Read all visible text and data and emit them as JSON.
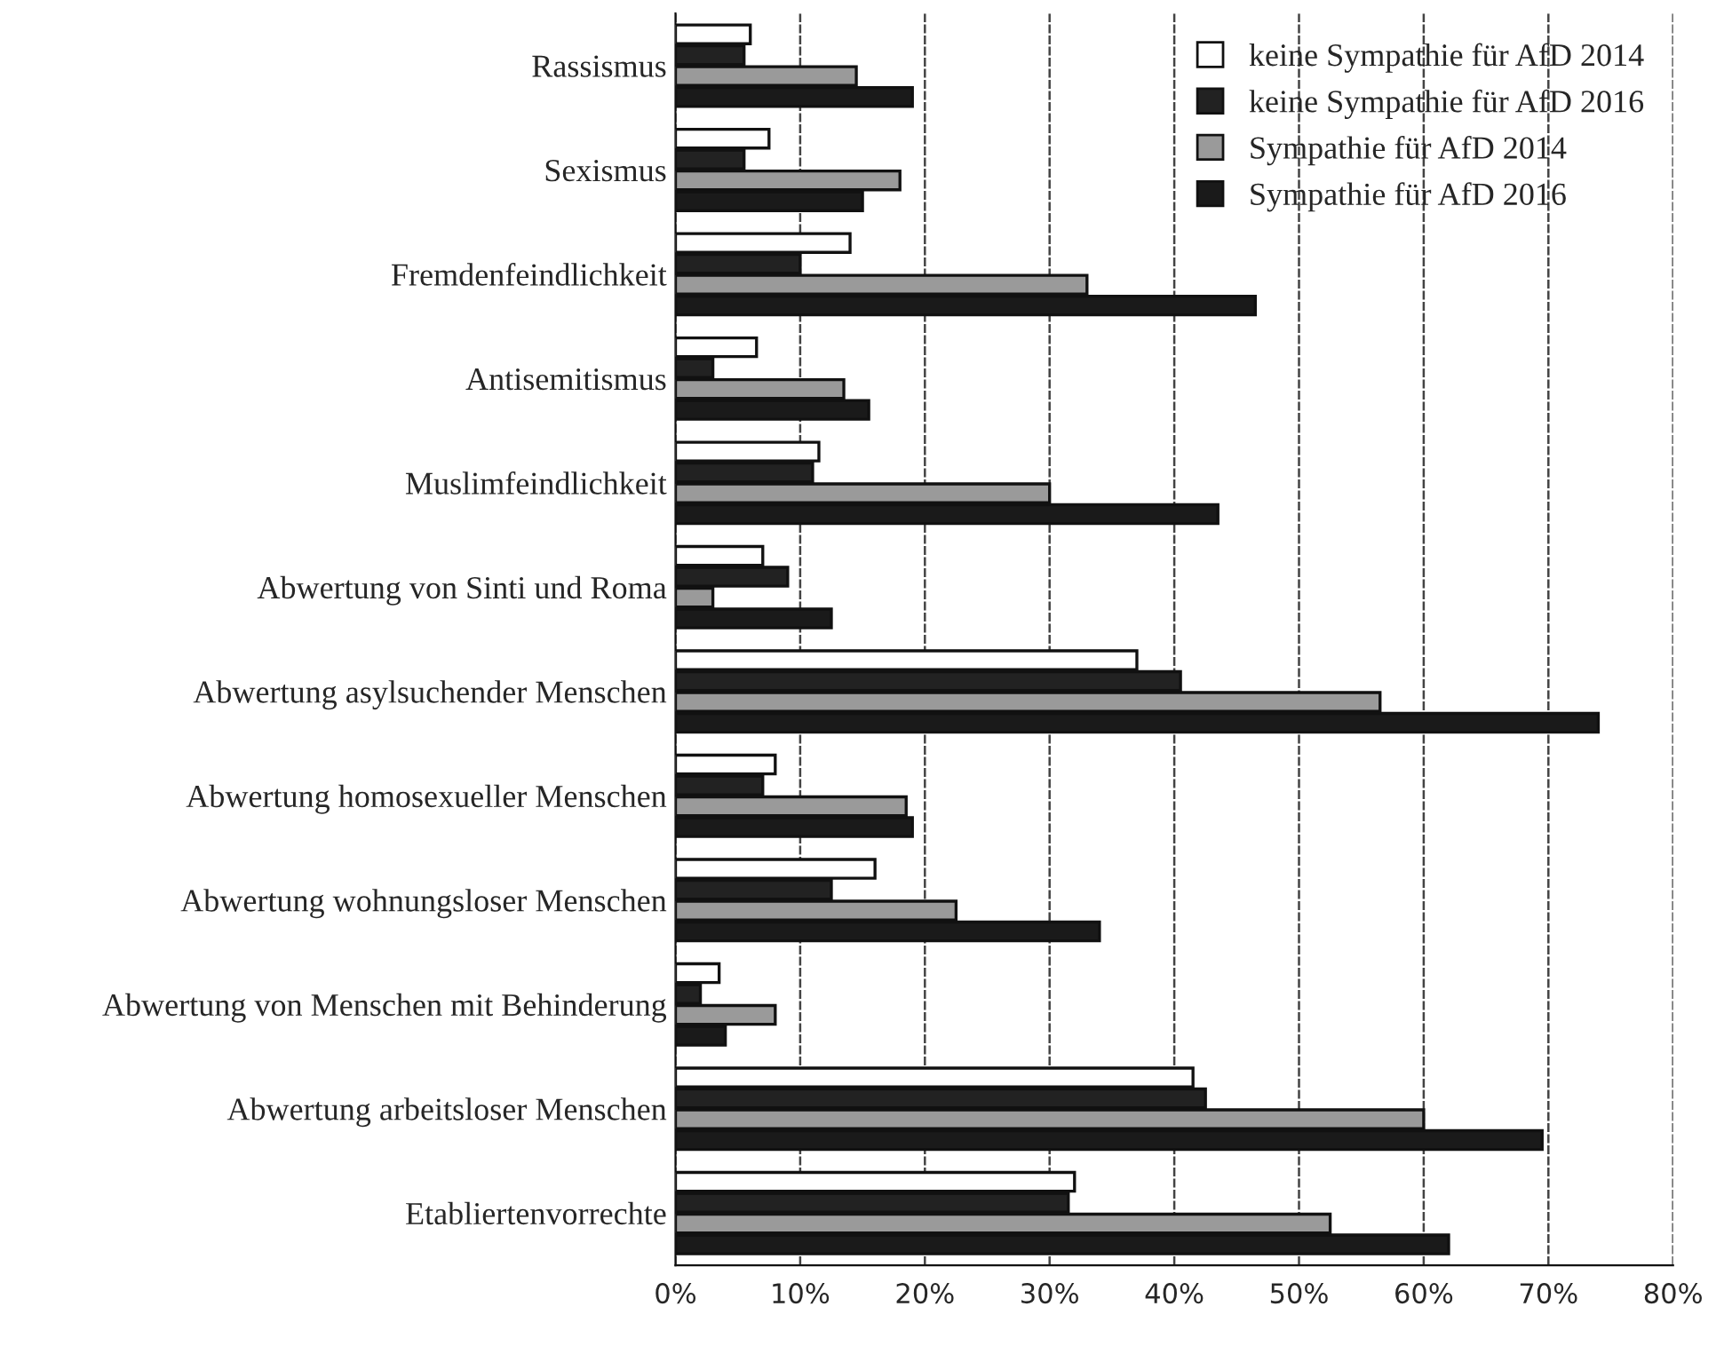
{
  "chart_data": {
    "type": "bar",
    "orientation": "horizontal",
    "categories": [
      "Rassismus",
      "Sexismus",
      "Fremdenfeindlichkeit",
      "Antisemitismus",
      "Muslimfeindlichkeit",
      "Abwertung von Sinti und Roma",
      "Abwertung asylsuchender Menschen",
      "Abwertung homosexueller Menschen",
      "Abwertung wohnungsloser Menschen",
      "Abwertung von Menschen mit Behinderung",
      "Abwertung arbeitsloser Menschen",
      "Etabliertenvorrechte"
    ],
    "series": [
      {
        "name": "keine Sympathie für AfD 2014",
        "color": "#ffffff",
        "values": [
          6,
          7.5,
          14,
          6.5,
          11.5,
          7,
          37,
          8,
          16,
          3.5,
          41.5,
          32
        ]
      },
      {
        "name": "keine Sympathie für AfD 2016",
        "color": "#222222",
        "values": [
          5.5,
          5.5,
          10,
          3,
          11,
          9,
          40.5,
          7,
          12.5,
          2,
          42.5,
          31.5
        ]
      },
      {
        "name": "Sympathie für AfD 2014",
        "color": "#9a9a9a",
        "values": [
          14.5,
          18,
          33,
          13.5,
          30,
          3,
          56.5,
          18.5,
          22.5,
          8,
          60,
          52.5
        ]
      },
      {
        "name": "Sympathie für AfD 2016",
        "color": "#1a1a1a",
        "values": [
          19,
          15,
          46.5,
          15.5,
          43.5,
          12.5,
          74,
          19,
          34,
          4,
          69.5,
          62
        ]
      }
    ],
    "xlim": [
      0,
      80
    ],
    "xticks": [
      {
        "value": 0,
        "label": "0%"
      },
      {
        "value": 10,
        "label": "10%"
      },
      {
        "value": 20,
        "label": "20%"
      },
      {
        "value": 30,
        "label": "30%"
      },
      {
        "value": 40,
        "label": "40%"
      },
      {
        "value": 50,
        "label": "50%"
      },
      {
        "value": 60,
        "label": "60%"
      },
      {
        "value": 70,
        "label": "70%"
      },
      {
        "value": 80,
        "label": "80%"
      }
    ],
    "grid": "x",
    "legend": "top right"
  }
}
